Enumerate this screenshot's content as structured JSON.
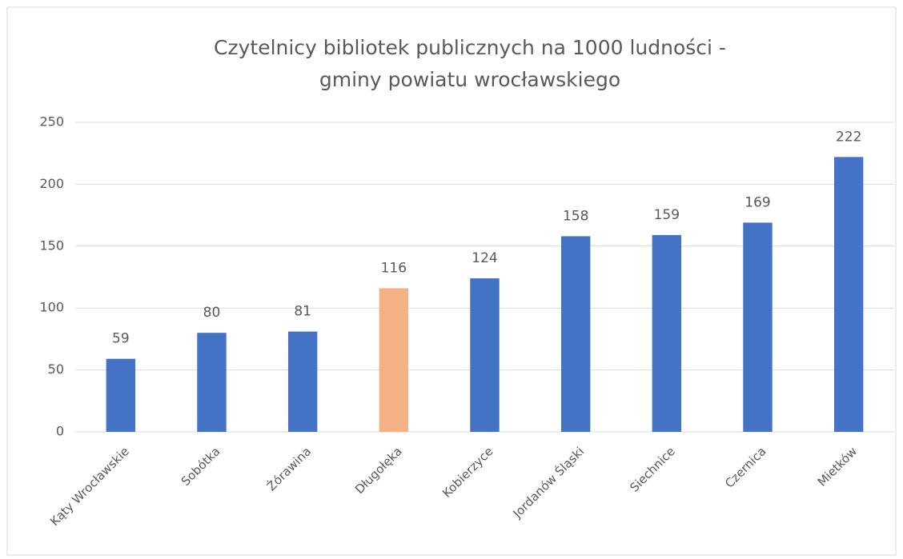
{
  "chart_data": {
    "type": "bar",
    "title": "Czytelnicy bibliotek publicznych na 1000 ludności - gminy powiatu wrocławskiego",
    "categories": [
      "Kąty Wrocławskie",
      "Sobótka",
      "Żórawina",
      "Długołęka",
      "Kobierzyce",
      "Jordanów Śląski",
      "Siechnice",
      "Czernica",
      "Mietków"
    ],
    "values": [
      59,
      80,
      81,
      116,
      124,
      158,
      159,
      169,
      222
    ],
    "colors": [
      "#4472c4",
      "#4472c4",
      "#4472c4",
      "#f4b183",
      "#4472c4",
      "#4472c4",
      "#4472c4",
      "#4472c4",
      "#4472c4"
    ],
    "ylim": [
      0,
      250
    ],
    "yticks": [
      0,
      50,
      100,
      150,
      200,
      250
    ],
    "grid": true
  }
}
